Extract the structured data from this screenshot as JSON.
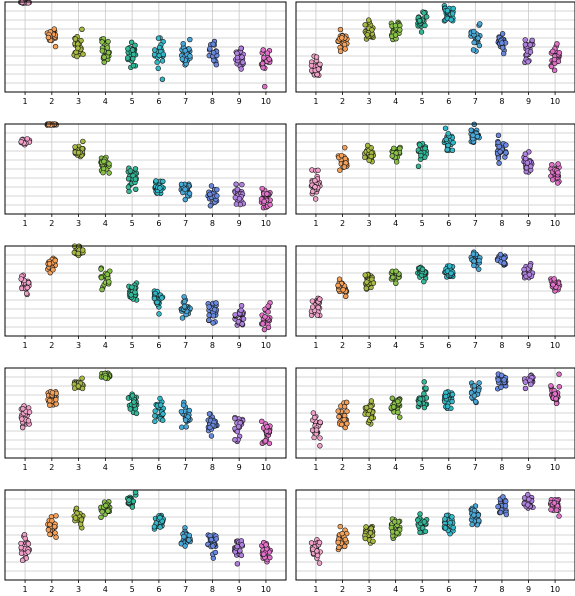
{
  "figure": {
    "rows": 5,
    "cols": 2,
    "palette": [
      "#f0a0c8",
      "#f4a058",
      "#a8b840",
      "#88c048",
      "#30b898",
      "#30b8c8",
      "#48a8d8",
      "#6888e0",
      "#b080e0",
      "#e070c8"
    ],
    "edge_color": "#1a1a1a",
    "grid": true
  },
  "chart_data": [
    {
      "type": "scatter",
      "style": "strip",
      "categories": [
        "1",
        "2",
        "3",
        "4",
        "5",
        "6",
        "7",
        "8",
        "9",
        "10"
      ],
      "ylim": [
        0,
        10
      ],
      "center": [
        9.95,
        6.2,
        5.0,
        4.7,
        4.4,
        4.3,
        4.3,
        4.3,
        3.9,
        3.6
      ],
      "spread": [
        0.05,
        1.0,
        1.2,
        1.3,
        1.3,
        1.3,
        1.2,
        1.2,
        1.2,
        1.3
      ]
    },
    {
      "type": "scatter",
      "style": "strip",
      "categories": [
        "1",
        "2",
        "3",
        "4",
        "5",
        "6",
        "7",
        "8",
        "9",
        "10"
      ],
      "ylim": [
        0,
        10
      ],
      "center": [
        3.0,
        5.8,
        6.6,
        6.8,
        8.0,
        8.8,
        6.2,
        5.5,
        4.6,
        3.8
      ],
      "spread": [
        1.3,
        1.0,
        0.9,
        0.9,
        0.9,
        0.9,
        1.2,
        1.2,
        1.2,
        1.2
      ]
    },
    {
      "type": "scatter",
      "style": "strip",
      "categories": [
        "1",
        "2",
        "3",
        "4",
        "5",
        "6",
        "7",
        "8",
        "9",
        "10"
      ],
      "ylim": [
        0,
        10
      ],
      "center": [
        8.0,
        9.95,
        7.0,
        5.6,
        3.9,
        3.2,
        2.6,
        2.2,
        2.1,
        1.8
      ],
      "spread": [
        0.4,
        0.1,
        0.7,
        0.9,
        1.0,
        1.0,
        1.1,
        1.1,
        1.1,
        1.1
      ]
    },
    {
      "type": "scatter",
      "style": "strip",
      "categories": [
        "1",
        "2",
        "3",
        "4",
        "5",
        "6",
        "7",
        "8",
        "9",
        "10"
      ],
      "ylim": [
        0,
        10
      ],
      "center": [
        3.4,
        5.8,
        6.6,
        6.8,
        7.0,
        8.2,
        8.8,
        7.0,
        5.4,
        4.5
      ],
      "spread": [
        1.3,
        0.9,
        0.9,
        0.8,
        0.8,
        0.8,
        0.8,
        1.2,
        1.2,
        1.2
      ]
    },
    {
      "type": "scatter",
      "style": "strip",
      "categories": [
        "1",
        "2",
        "3",
        "4",
        "5",
        "6",
        "7",
        "8",
        "9",
        "10"
      ],
      "ylim": [
        0,
        10
      ],
      "center": [
        5.6,
        8.0,
        9.5,
        6.3,
        4.8,
        4.0,
        3.1,
        2.7,
        2.6,
        2.2
      ],
      "spread": [
        1.1,
        0.6,
        0.4,
        1.0,
        1.0,
        1.1,
        1.1,
        1.1,
        1.2,
        1.1
      ]
    },
    {
      "type": "scatter",
      "style": "strip",
      "categories": [
        "1",
        "2",
        "3",
        "4",
        "5",
        "6",
        "7",
        "8",
        "9",
        "10"
      ],
      "ylim": [
        0,
        10
      ],
      "center": [
        3.3,
        5.4,
        6.2,
        6.6,
        6.9,
        7.2,
        8.4,
        8.6,
        7.2,
        5.8
      ],
      "spread": [
        1.4,
        1.0,
        0.9,
        0.7,
        0.8,
        0.8,
        0.8,
        0.7,
        0.8,
        0.9
      ]
    },
    {
      "type": "scatter",
      "style": "strip",
      "categories": [
        "1",
        "2",
        "3",
        "4",
        "5",
        "6",
        "7",
        "8",
        "9",
        "10"
      ],
      "ylim": [
        0,
        10
      ],
      "center": [
        4.6,
        6.8,
        8.2,
        9.2,
        6.2,
        5.3,
        4.6,
        3.6,
        3.2,
        3.1
      ],
      "spread": [
        1.3,
        0.8,
        0.6,
        0.4,
        1.0,
        1.1,
        1.2,
        1.2,
        1.2,
        1.3
      ]
    },
    {
      "type": "scatter",
      "style": "strip",
      "categories": [
        "1",
        "2",
        "3",
        "4",
        "5",
        "6",
        "7",
        "8",
        "9",
        "10"
      ],
      "ylim": [
        0,
        10
      ],
      "center": [
        3.1,
        4.6,
        5.4,
        5.9,
        6.3,
        6.6,
        7.4,
        8.6,
        8.6,
        7.0
      ],
      "spread": [
        1.5,
        1.4,
        1.2,
        1.0,
        1.0,
        1.0,
        1.0,
        0.8,
        0.8,
        1.1
      ]
    },
    {
      "type": "scatter",
      "style": "strip",
      "categories": [
        "1",
        "2",
        "3",
        "4",
        "5",
        "6",
        "7",
        "8",
        "9",
        "10"
      ],
      "ylim": [
        0,
        10
      ],
      "center": [
        3.8,
        5.9,
        6.8,
        7.8,
        8.8,
        6.4,
        4.7,
        4.0,
        3.4,
        2.9
      ],
      "spread": [
        1.4,
        0.9,
        0.8,
        0.7,
        0.6,
        1.0,
        1.1,
        1.2,
        1.1,
        1.2
      ]
    },
    {
      "type": "scatter",
      "style": "strip",
      "categories": [
        "1",
        "2",
        "3",
        "4",
        "5",
        "6",
        "7",
        "8",
        "9",
        "10"
      ],
      "ylim": [
        0,
        10
      ],
      "center": [
        3.2,
        4.6,
        5.2,
        5.6,
        6.4,
        6.4,
        7.0,
        8.0,
        8.6,
        8.4
      ],
      "spread": [
        1.3,
        1.0,
        1.0,
        1.0,
        0.9,
        1.0,
        1.0,
        0.9,
        0.7,
        0.8
      ]
    }
  ]
}
